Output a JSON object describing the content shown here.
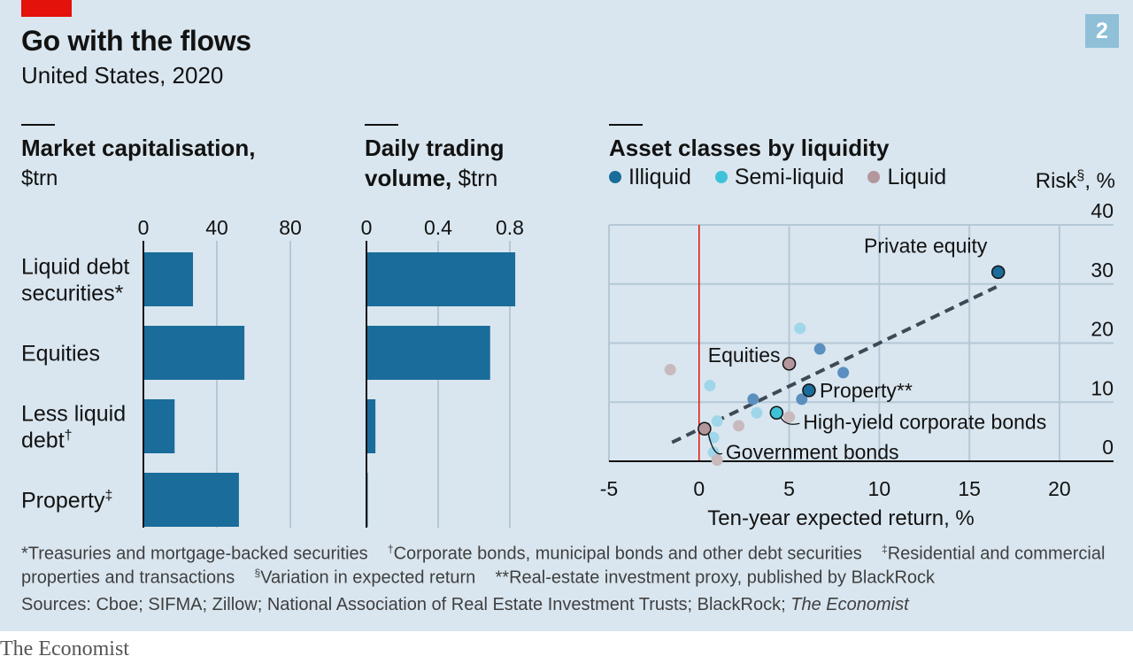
{
  "header": {
    "title": "Go with the flows",
    "subtitle": "United States, 2020",
    "badge": "2"
  },
  "panels": {
    "market_cap": {
      "title": "Market capitalisation,",
      "unit": "$trn"
    },
    "trading": {
      "title_line1": "Daily trading",
      "title_line2": "volume,",
      "unit": "$trn"
    },
    "liquidity": {
      "title": "Asset classes by liquidity",
      "y_label": "Risk",
      "y_label_sup": "§",
      "y_label_unit": ", %",
      "x_label": "Ten-year expected return, %"
    }
  },
  "legend": [
    {
      "label": "Illiquid",
      "color": "#1a6c9a"
    },
    {
      "label": "Semi-liquid",
      "color": "#3ec2d8"
    },
    {
      "label": "Liquid",
      "color": "#b3979c"
    }
  ],
  "chart_data": [
    {
      "type": "bar",
      "orientation": "horizontal",
      "title": "Market capitalisation, $trn",
      "categories": [
        {
          "line1": "Liquid debt",
          "line2": "securities*",
          "sup": ""
        },
        {
          "line1": "Equities",
          "line2": "",
          "sup": ""
        },
        {
          "line1": "Less liquid",
          "line2": "debt",
          "sup": "†"
        },
        {
          "line1": "Property",
          "line2": "",
          "sup": "‡"
        }
      ],
      "values": [
        27,
        55,
        17,
        52
      ],
      "xlim": [
        0,
        80
      ],
      "xticks": [
        0,
        40,
        80
      ],
      "grid": true,
      "color": "#1a6c9a"
    },
    {
      "type": "bar",
      "orientation": "horizontal",
      "title": "Daily trading volume, $trn",
      "categories": [
        "Liquid debt securities",
        "Equities",
        "Less liquid debt",
        "Property"
      ],
      "values": [
        0.83,
        0.69,
        0.05,
        0.005
      ],
      "xlim": [
        0,
        0.8
      ],
      "xticks": [
        "0",
        "0.4",
        "0.8"
      ],
      "grid": true,
      "color": "#1a6c9a"
    },
    {
      "type": "scatter",
      "title": "Asset classes by liquidity",
      "xlabel": "Ten-year expected return, %",
      "ylabel": "Risk§, %",
      "xlim": [
        -5,
        23
      ],
      "ylim": [
        0,
        40
      ],
      "xticks": [
        -5,
        0,
        5,
        10,
        15,
        20
      ],
      "yticks": [
        0,
        10,
        20,
        30,
        40
      ],
      "grid": true,
      "reference_line_x": 0,
      "trend_line": [
        [
          -1.5,
          3.2
        ],
        [
          16.5,
          29.5
        ]
      ],
      "points": [
        {
          "x": 16.6,
          "y": 32,
          "group": "Illiquid",
          "label": "Private equity",
          "highlight": true
        },
        {
          "x": 6.1,
          "y": 12,
          "group": "Illiquid",
          "label": "Property**",
          "highlight": true
        },
        {
          "x": 6.7,
          "y": 19,
          "group": "Illiquid",
          "label": "",
          "highlight": false
        },
        {
          "x": 8.0,
          "y": 15,
          "group": "Illiquid",
          "label": "",
          "highlight": false
        },
        {
          "x": 3.0,
          "y": 10.5,
          "group": "Illiquid",
          "label": "",
          "highlight": false
        },
        {
          "x": 5.7,
          "y": 10.5,
          "group": "Illiquid",
          "label": "",
          "highlight": false
        },
        {
          "x": 4.3,
          "y": 8.2,
          "group": "Semi-liquid",
          "label": "High-yield corporate bonds",
          "highlight": true
        },
        {
          "x": 5.6,
          "y": 22.5,
          "group": "Semi-liquid",
          "label": "",
          "highlight": false
        },
        {
          "x": 0.6,
          "y": 12.8,
          "group": "Semi-liquid",
          "label": "",
          "highlight": false
        },
        {
          "x": 3.2,
          "y": 8.2,
          "group": "Semi-liquid",
          "label": "",
          "highlight": false
        },
        {
          "x": 1.0,
          "y": 6.8,
          "group": "Semi-liquid",
          "label": "",
          "highlight": false
        },
        {
          "x": 0.8,
          "y": 4.0,
          "group": "Semi-liquid",
          "label": "",
          "highlight": false
        },
        {
          "x": 0.8,
          "y": 1.5,
          "group": "Semi-liquid",
          "label": "",
          "highlight": false
        },
        {
          "x": 5.0,
          "y": 16.5,
          "group": "Liquid",
          "label": "Equities",
          "highlight": true
        },
        {
          "x": 0.3,
          "y": 5.5,
          "group": "Liquid",
          "label": "Government bonds",
          "highlight": true
        },
        {
          "x": -1.6,
          "y": 15.5,
          "group": "Liquid",
          "label": "",
          "highlight": false
        },
        {
          "x": 2.2,
          "y": 6.0,
          "group": "Liquid",
          "label": "",
          "highlight": false
        },
        {
          "x": 5.0,
          "y": 7.5,
          "group": "Liquid",
          "label": "",
          "highlight": false
        },
        {
          "x": 1.0,
          "y": 0.2,
          "group": "Liquid",
          "label": "",
          "highlight": false
        }
      ]
    }
  ],
  "footnotes": {
    "line1": [
      {
        "sup": "",
        "text": "*Treasuries and mortgage-backed securities"
      },
      {
        "sup": "†",
        "text": "Corporate bonds, municipal bonds and other debt securities"
      },
      {
        "sup": "‡",
        "text": "Residential and commercial"
      }
    ],
    "line2": [
      {
        "sup": "",
        "text": "properties and transactions"
      },
      {
        "sup": "§",
        "text": "Variation in expected return"
      },
      {
        "sup": "",
        "text": "**Real-estate investment proxy, published by BlackRock"
      }
    ],
    "sources_prefix": "Sources: Cboe; SIFMA; Zillow; National Association of Real Estate Investment Trusts; BlackRock; ",
    "sources_italic": "The Economist"
  },
  "brand": "The Economist"
}
